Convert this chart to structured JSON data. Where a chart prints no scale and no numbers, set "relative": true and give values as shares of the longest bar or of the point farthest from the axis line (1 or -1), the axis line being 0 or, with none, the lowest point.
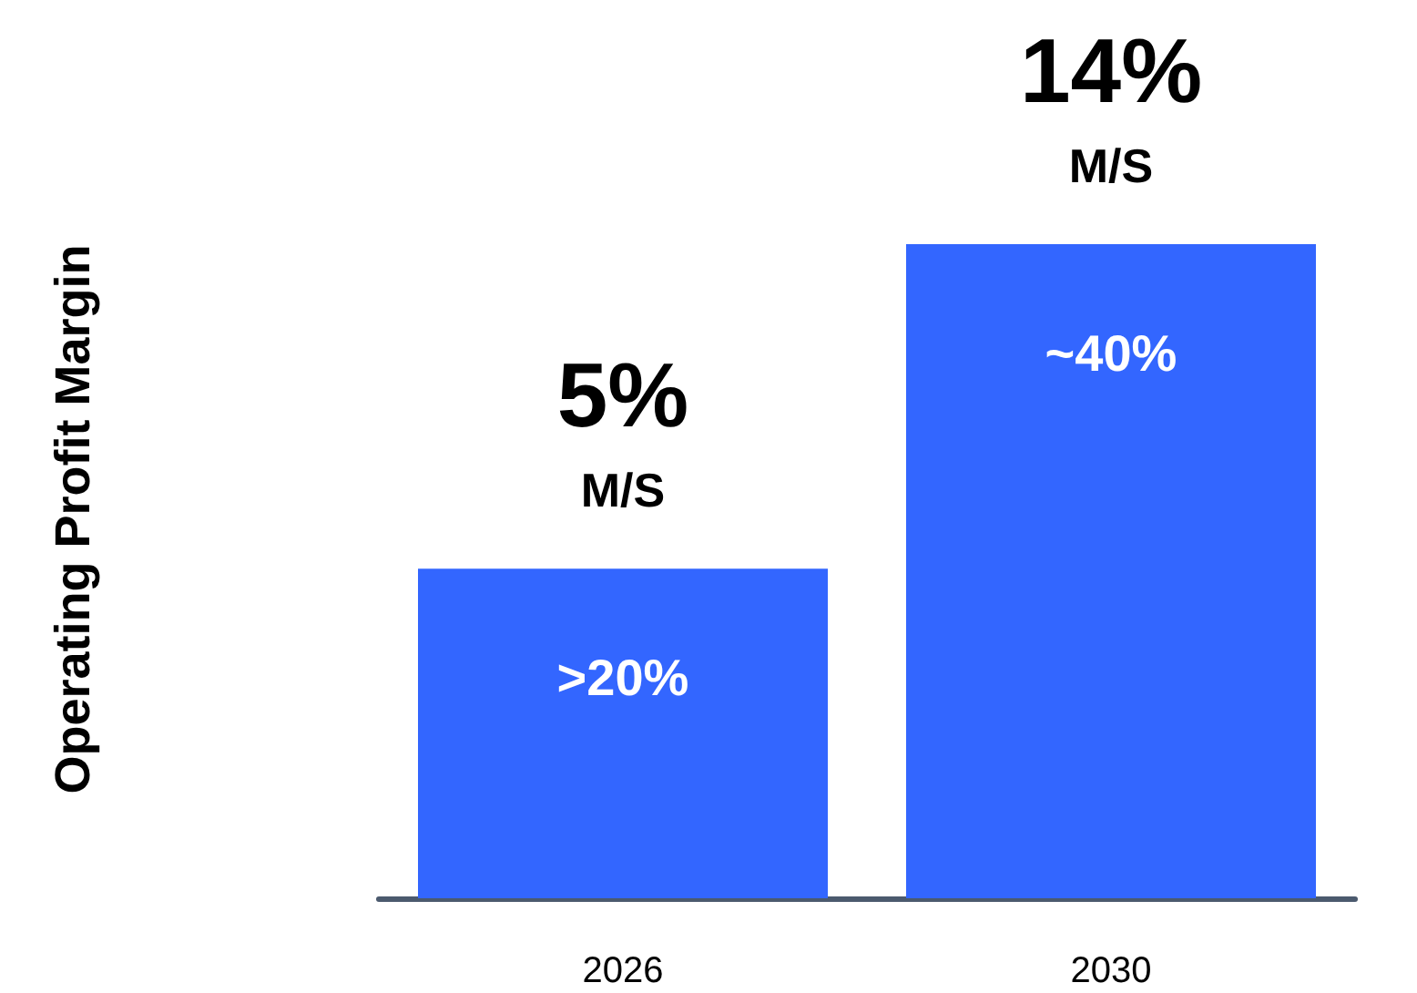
{
  "chart_data": {
    "type": "bar",
    "categories": [
      "2026",
      "2030"
    ],
    "relative": true,
    "values": [
      0.504,
      1
    ],
    "color": "#3366ff",
    "annotations": [
      "Operating Profit Margin",
      {
        "text": "5%",
        "x": "2026",
        "y": 0.504
      },
      {
        "text": "M/S",
        "x": "2026",
        "y": 0.504
      },
      {
        "text": "14%",
        "x": "2030",
        "y": 1
      },
      {
        "text": "M/S",
        "x": "2030",
        "y": 1
      },
      ">20%",
      "~40%"
    ]
  }
}
